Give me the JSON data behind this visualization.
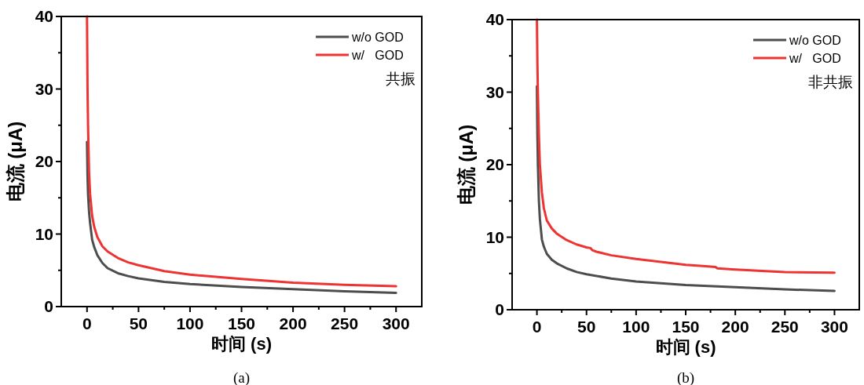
{
  "chart_data": [
    {
      "type": "line",
      "xlabel": "时间 (s)",
      "ylabel": "电流 (μA)",
      "xlim": [
        -25,
        325
      ],
      "ylim": [
        0,
        40
      ],
      "xticks": [
        0,
        {
          "value": 25,
          "label": null
        },
        50,
        {
          "value": 75,
          "label": null
        },
        100,
        {
          "value": 125,
          "label": null
        },
        150,
        {
          "value": 175,
          "label": null
        },
        200,
        {
          "value": 225,
          "label": null
        },
        250,
        {
          "value": 275,
          "label": null
        },
        300
      ],
      "yticks": [
        0,
        {
          "value": 5,
          "label": null
        },
        10,
        {
          "value": 15,
          "label": null
        },
        20,
        {
          "value": 25,
          "label": null
        },
        30,
        {
          "value": 35,
          "label": null
        },
        40
      ],
      "legend": "top right",
      "grid": false,
      "annotations": [
        "共振",
        "(a)"
      ],
      "series": [
        {
          "name": "w/o GOD",
          "color": "#4d4d4d",
          "x": [
            0,
            0.5,
            1,
            2,
            3,
            5,
            7,
            10,
            15,
            20,
            30,
            40,
            50,
            75,
            100,
            150,
            200,
            250,
            300
          ],
          "values": [
            22.7,
            18,
            15.5,
            13,
            11.5,
            9.2,
            8.2,
            7.1,
            6,
            5.3,
            4.6,
            4.2,
            3.9,
            3.4,
            3.1,
            2.7,
            2.4,
            2.1,
            1.9
          ]
        },
        {
          "name": "w/   GOD",
          "color": "#ee3333",
          "x": [
            0,
            0.5,
            1,
            2,
            3,
            5,
            7,
            10,
            15,
            20,
            30,
            40,
            50,
            75,
            100,
            150,
            200,
            250,
            300
          ],
          "values": [
            40,
            30,
            25,
            18.5,
            15.5,
            12.5,
            11,
            9.6,
            8.3,
            7.6,
            6.7,
            6.1,
            5.7,
            4.9,
            4.4,
            3.8,
            3.3,
            3.0,
            2.8
          ]
        }
      ]
    },
    {
      "type": "line",
      "xlabel": "时间 (s)",
      "ylabel": "电流 (μA)",
      "xlim": [
        -25,
        325
      ],
      "ylim": [
        0,
        40
      ],
      "xticks": [
        0,
        {
          "value": 25,
          "label": null
        },
        50,
        {
          "value": 75,
          "label": null
        },
        100,
        {
          "value": 125,
          "label": null
        },
        150,
        {
          "value": 175,
          "label": null
        },
        200,
        {
          "value": 225,
          "label": null
        },
        250,
        {
          "value": 275,
          "label": null
        },
        300
      ],
      "yticks": [
        0,
        {
          "value": 5,
          "label": null
        },
        10,
        {
          "value": 15,
          "label": null
        },
        20,
        {
          "value": 25,
          "label": null
        },
        30,
        {
          "value": 35,
          "label": null
        },
        40
      ],
      "legend": "top right",
      "grid": false,
      "annotations": [
        "非共振",
        "(b)"
      ],
      "series": [
        {
          "name": "w/o GOD",
          "color": "#4d4d4d",
          "x": [
            0,
            0.5,
            1,
            2,
            3,
            5,
            7,
            10,
            15,
            20,
            30,
            40,
            50,
            75,
            100,
            150,
            200,
            250,
            300
          ],
          "values": [
            30.8,
            24,
            20,
            15,
            12.5,
            9.7,
            8.7,
            7.7,
            6.9,
            6.4,
            5.7,
            5.2,
            4.9,
            4.3,
            3.9,
            3.4,
            3.1,
            2.8,
            2.6
          ]
        },
        {
          "name": "w/   GOD",
          "color": "#ee3333",
          "x": [
            0,
            0.5,
            1,
            2,
            3,
            5,
            7,
            10,
            15,
            20,
            30,
            40,
            50,
            54,
            56,
            60,
            75,
            100,
            150,
            170,
            180,
            182,
            200,
            250,
            300
          ],
          "values": [
            40,
            34,
            30,
            24,
            20,
            16.2,
            14,
            12.3,
            11.2,
            10.5,
            9.6,
            9,
            8.6,
            8.5,
            8.2,
            8.0,
            7.5,
            7.0,
            6.2,
            6.0,
            5.9,
            5.7,
            5.55,
            5.2,
            5.1
          ]
        }
      ]
    }
  ]
}
